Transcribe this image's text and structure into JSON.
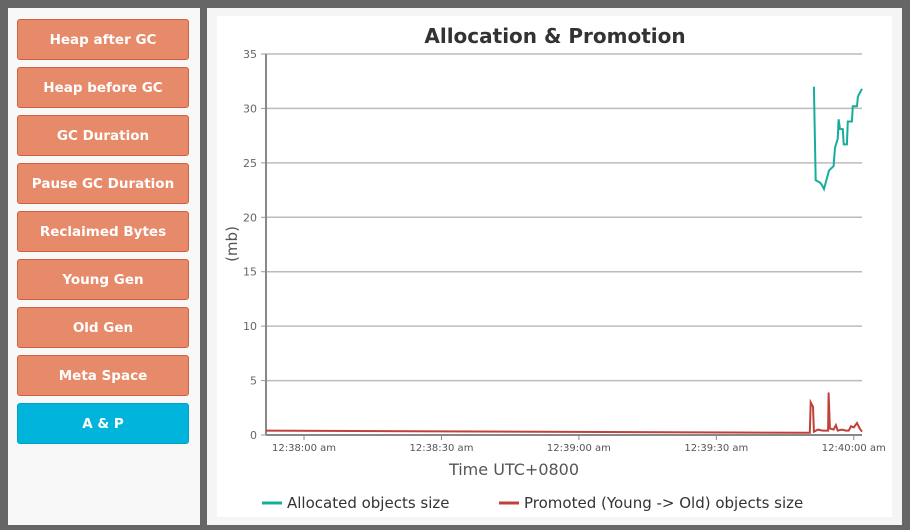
{
  "sidebar": {
    "buttons": [
      {
        "label": "Heap after GC",
        "active": false
      },
      {
        "label": "Heap before GC",
        "active": false
      },
      {
        "label": "GC Duration",
        "active": false
      },
      {
        "label": "Pause GC Duration",
        "active": false
      },
      {
        "label": "Reclaimed Bytes",
        "active": false
      },
      {
        "label": "Young Gen",
        "active": false
      },
      {
        "label": "Old Gen",
        "active": false
      },
      {
        "label": "Meta Space",
        "active": false
      },
      {
        "label": "A & P",
        "active": true
      }
    ]
  },
  "chart_data": {
    "type": "line",
    "title": "Allocation & Promotion",
    "xlabel": "Time UTC+0800",
    "ylabel": "(mb)",
    "ylim": [
      0,
      35
    ],
    "yticks": [
      0,
      5,
      10,
      15,
      20,
      25,
      30,
      35
    ],
    "xlim": [
      "12:37:51.7",
      "12:40:01.8"
    ],
    "xticks": [
      "12:38:00 am",
      "12:38:30 am",
      "12:39:00 am",
      "12:39:30 am",
      "12:40:00 am"
    ],
    "xtick_times": [
      "12:38:00",
      "12:38:30",
      "12:39:00",
      "12:39:30",
      "12:40:00"
    ],
    "grid": true,
    "legend_position": "bottom",
    "series": [
      {
        "name": "Allocated objects size",
        "color": "#17ad9c",
        "x": [
          "12:39:51.3",
          "12:39:51.7",
          "12:39:52.6",
          "12:39:53.0",
          "12:39:53.5",
          "12:39:54.6",
          "12:39:55.6",
          "12:39:55.9",
          "12:39:56.5",
          "12:39:56.7",
          "12:39:57.0",
          "12:39:57.6",
          "12:39:57.8",
          "12:39:58.5",
          "12:39:58.7",
          "12:39:59.6",
          "12:39:59.8",
          "12:40:00.7",
          "12:40:00.9",
          "12:40:01.8"
        ],
        "y": [
          32.0,
          23.4,
          23.2,
          23.0,
          22.6,
          24.3,
          24.7,
          26.4,
          27.2,
          29.0,
          28.1,
          28.1,
          26.7,
          26.7,
          28.8,
          28.8,
          30.2,
          30.2,
          31.1,
          31.8
        ]
      },
      {
        "name": "Promoted (Young -> Old) objects size",
        "color": "#c0403a",
        "x": [
          "12:37:51.7",
          "12:39:50.4",
          "12:39:50.6",
          "12:39:51.1",
          "12:39:51.3",
          "12:39:52.2",
          "12:39:53.2",
          "12:39:54.4",
          "12:39:54.5",
          "12:39:54.8",
          "12:39:55.6",
          "12:39:56.1",
          "12:39:56.5",
          "12:39:57.4",
          "12:39:58.3",
          "12:39:58.9",
          "12:39:59.4",
          "12:40:00.0",
          "12:40:00.7",
          "12:40:01.3",
          "12:40:01.8"
        ],
        "y": [
          0.4,
          0.2,
          3.0,
          2.6,
          0.3,
          0.5,
          0.4,
          0.4,
          3.9,
          0.6,
          0.5,
          0.9,
          0.4,
          0.5,
          0.4,
          0.4,
          0.8,
          0.7,
          1.1,
          0.6,
          0.3
        ]
      }
    ]
  }
}
